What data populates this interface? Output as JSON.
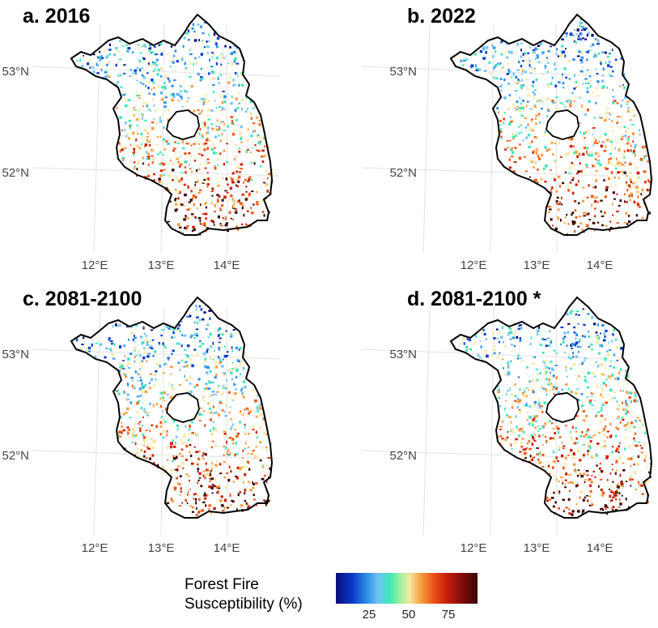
{
  "panels": [
    {
      "title": "a. 2016",
      "lat_labels": [
        "53°N",
        "52°N"
      ],
      "lon_labels": [
        "12°E",
        "13°E",
        "14°E"
      ]
    },
    {
      "title": "b. 2022",
      "lat_labels": [
        "53°N",
        "52°N"
      ],
      "lon_labels": [
        "12°E",
        "13°E",
        "14°E"
      ]
    },
    {
      "title": "c. 2081-2100",
      "lat_labels": [
        "53°N",
        "52°N"
      ],
      "lon_labels": [
        "12°E",
        "13°E",
        "14°E"
      ]
    },
    {
      "title": "d. 2081-2100 *",
      "lat_labels": [
        "53°N",
        "52°N"
      ],
      "lon_labels": [
        "12°E",
        "13°E",
        "14°E"
      ]
    }
  ],
  "legend": {
    "title_line1": "Forest Fire",
    "title_line2": "Susceptibility (%)",
    "ticks": [
      "25",
      "50",
      "75"
    ],
    "colors": [
      "#0a0a7a",
      "#0a3cc8",
      "#2f8fe8",
      "#6fc4f2",
      "#3ee6b8",
      "#f4e8a0",
      "#f6a040",
      "#ee5a1a",
      "#c8200a",
      "#3c0202"
    ]
  }
}
